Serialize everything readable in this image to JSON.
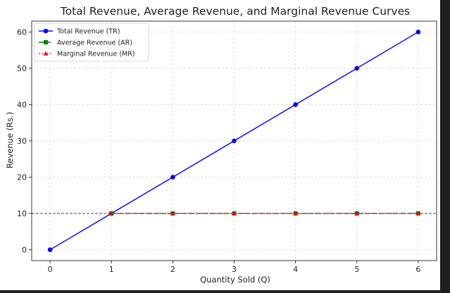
{
  "chart_data": {
    "type": "line",
    "title": "Total Revenue, Average Revenue, and Marginal Revenue Curves",
    "xlabel": "Quantity Sold (Q)",
    "ylabel": "Revenue (Rs.)",
    "xlim": [
      -0.3,
      6.3
    ],
    "ylim": [
      -3,
      63
    ],
    "xticks": [
      0,
      1,
      2,
      3,
      4,
      5,
      6
    ],
    "yticks": [
      0,
      10,
      20,
      30,
      40,
      50,
      60
    ],
    "grid": true,
    "legend_position": "top-left",
    "reference_line": {
      "axis": "y",
      "value": 10,
      "style": "dashed",
      "color": "#333333"
    },
    "series": [
      {
        "name": "Total Revenue (TR)",
        "x": [
          0,
          1,
          2,
          3,
          4,
          5,
          6
        ],
        "y": [
          0,
          10,
          20,
          30,
          40,
          50,
          60
        ],
        "color": "#0000ff",
        "line": "solid",
        "marker": "circle"
      },
      {
        "name": "Average Revenue (AR)",
        "x": [
          1,
          2,
          3,
          4,
          5,
          6
        ],
        "y": [
          10,
          10,
          10,
          10,
          10,
          10
        ],
        "color": "#008000",
        "line": "dashed",
        "marker": "square"
      },
      {
        "name": "Marginal Revenue (MR)",
        "x": [
          1,
          2,
          3,
          4,
          5,
          6
        ],
        "y": [
          10,
          10,
          10,
          10,
          10,
          10
        ],
        "color": "#ff0000",
        "line": "dotted",
        "marker": "triangle"
      }
    ]
  }
}
